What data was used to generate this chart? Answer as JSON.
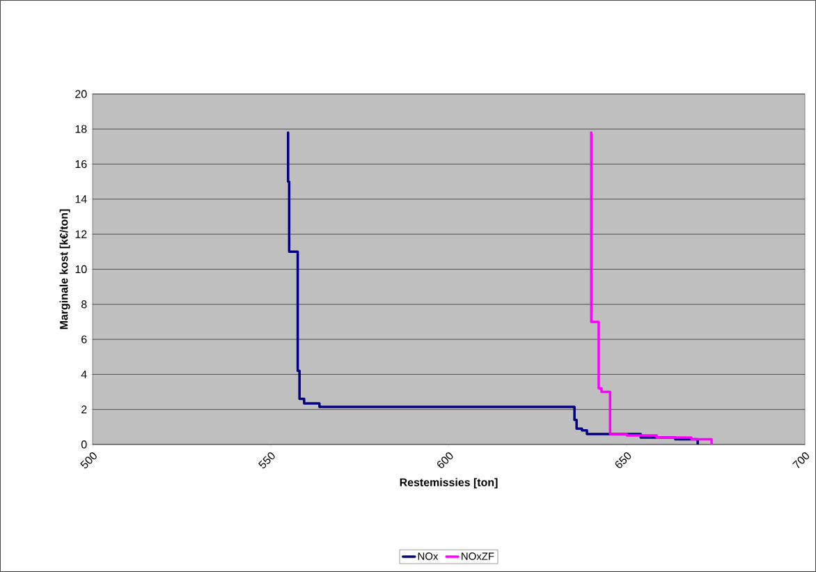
{
  "chart_data": {
    "type": "line",
    "xlabel": "Restemissies [ton]",
    "ylabel": "Marginale kost [k€/ton]",
    "xlim": [
      500,
      700
    ],
    "ylim": [
      0,
      20
    ],
    "xticks": [
      500,
      550,
      600,
      650,
      700
    ],
    "yticks": [
      0,
      2,
      4,
      6,
      8,
      10,
      12,
      14,
      16,
      18,
      20
    ],
    "grid": "y",
    "legend": "bottom",
    "marker": "none",
    "line_style": "solid",
    "series": [
      {
        "name": "NOx",
        "color": "#000080",
        "x": [
          554.9,
          554.9,
          555.2,
          555.2,
          557.6,
          557.6,
          558.1,
          558.1,
          559.4,
          559.4,
          563.7,
          563.7,
          635.3,
          635.3,
          635.9,
          635.9,
          637.4,
          637.4,
          638.8,
          638.8,
          653.9,
          653.9,
          663.6,
          663.6,
          669.9,
          669.9
        ],
        "values": [
          17.8,
          15,
          15,
          11,
          11,
          4.2,
          4.2,
          2.6,
          2.6,
          2.35,
          2.35,
          2.15,
          2.15,
          1.4,
          1.4,
          0.9,
          0.9,
          0.8,
          0.8,
          0.6,
          0.6,
          0.4,
          0.4,
          0.3,
          0.3,
          0
        ]
      },
      {
        "name": "NOxZF",
        "color": "#ff00ff",
        "x": [
          640.0,
          640.0,
          642.1,
          642.1,
          642.9,
          642.9,
          645.3,
          645.3,
          650.0,
          650.0,
          658.4,
          658.4,
          668.1,
          668.1,
          673.8,
          673.8
        ],
        "values": [
          17.8,
          7.0,
          7.0,
          3.2,
          3.2,
          3.0,
          3.0,
          0.6,
          0.6,
          0.52,
          0.52,
          0.4,
          0.4,
          0.3,
          0.3,
          0
        ]
      }
    ]
  }
}
